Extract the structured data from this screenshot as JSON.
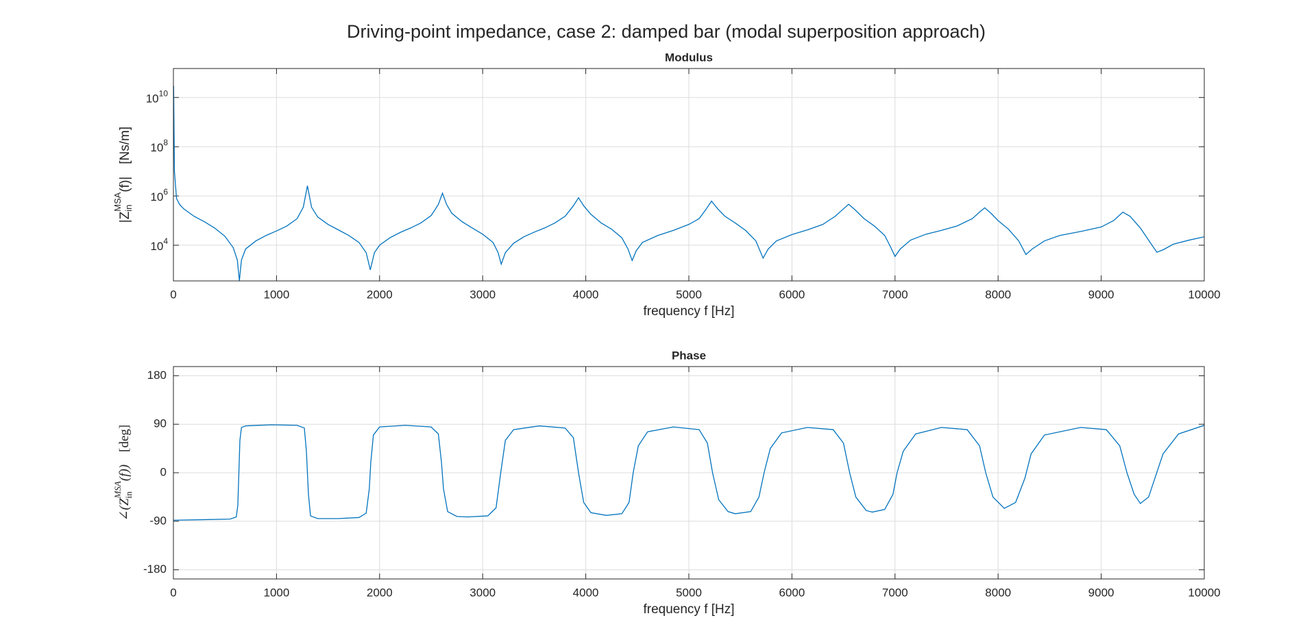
{
  "title": "Driving-point impedance, case 2: damped bar (modal superposition approach)",
  "chart_data": [
    {
      "type": "line",
      "title": "Modulus",
      "xlabel": "frequency f [Hz]",
      "ylabel": [
        "|Z",
        "in",
        "MSA",
        "(f)|",
        "[Ns/m]"
      ],
      "log_y": true,
      "grid": true,
      "color": "#0072bd",
      "xlim": [
        0,
        10000
      ],
      "xticks": [
        0,
        1000,
        2000,
        3000,
        4000,
        5000,
        6000,
        7000,
        8000,
        9000,
        10000
      ],
      "ylim": [
        355,
        150000000000
      ],
      "yticks": [
        {
          "value": 10000,
          "label": [
            "10",
            "4"
          ]
        },
        {
          "value": 1000000,
          "label": [
            "10",
            "6"
          ]
        },
        {
          "value": 100000000,
          "label": [
            "10",
            "8"
          ]
        },
        {
          "value": 10000000000,
          "label": [
            "10",
            "10"
          ]
        }
      ],
      "x": [
        2,
        10,
        30,
        60,
        100,
        200,
        300,
        400,
        500,
        580,
        620,
        640,
        660,
        700,
        800,
        900,
        1000,
        1100,
        1200,
        1260,
        1300,
        1340,
        1400,
        1500,
        1600,
        1700,
        1800,
        1870,
        1910,
        1950,
        2000,
        2100,
        2200,
        2300,
        2400,
        2500,
        2570,
        2610,
        2650,
        2700,
        2800,
        2900,
        3000,
        3100,
        3150,
        3180,
        3220,
        3300,
        3400,
        3500,
        3600,
        3700,
        3800,
        3880,
        3930,
        3980,
        4050,
        4150,
        4250,
        4350,
        4410,
        4450,
        4490,
        4550,
        4700,
        4850,
        5000,
        5100,
        5170,
        5220,
        5280,
        5350,
        5450,
        5550,
        5650,
        5720,
        5770,
        5850,
        6000,
        6150,
        6300,
        6420,
        6500,
        6550,
        6610,
        6700,
        6800,
        6900,
        6960,
        7000,
        7050,
        7150,
        7300,
        7450,
        7600,
        7750,
        7830,
        7870,
        7930,
        8000,
        8100,
        8200,
        8270,
        8330,
        8450,
        8600,
        8800,
        9000,
        9120,
        9210,
        9280,
        9380,
        9480,
        9540,
        9600,
        9700,
        9850,
        10000
      ],
      "values": [
        30000000000,
        10000000,
        800000,
        450000,
        300000,
        150000,
        90000,
        50000,
        23000,
        8000,
        2500,
        360,
        2500,
        7000,
        15000,
        25000,
        38000,
        60000,
        120000,
        350000,
        2600000,
        350000,
        140000,
        70000,
        42000,
        25000,
        13000,
        5000,
        1000,
        5000,
        10000,
        20000,
        33000,
        50000,
        80000,
        160000,
        450000,
        1300000,
        450000,
        200000,
        90000,
        50000,
        28000,
        13000,
        5000,
        1700,
        5000,
        12000,
        22000,
        34000,
        50000,
        80000,
        150000,
        400000,
        850000,
        400000,
        180000,
        80000,
        45000,
        20000,
        7000,
        2400,
        6000,
        13000,
        25000,
        40000,
        70000,
        120000,
        300000,
        620000,
        300000,
        150000,
        80000,
        40000,
        15000,
        3000,
        7000,
        15000,
        27000,
        42000,
        70000,
        150000,
        300000,
        460000,
        280000,
        120000,
        60000,
        25000,
        8000,
        3500,
        7000,
        16000,
        28000,
        40000,
        60000,
        120000,
        240000,
        330000,
        200000,
        100000,
        45000,
        15000,
        4200,
        7000,
        15000,
        25000,
        36000,
        55000,
        100000,
        220000,
        150000,
        50000,
        12000,
        5200,
        6500,
        11000,
        16000,
        22000
      ]
    },
    {
      "type": "line",
      "title": "Phase",
      "xlabel": "frequency f [Hz]",
      "ylabel": [
        "∠(Z",
        "in",
        "MSA",
        "(f))",
        "[deg]"
      ],
      "log_y": false,
      "grid": true,
      "color": "#0072bd",
      "xlim": [
        0,
        10000
      ],
      "xticks": [
        0,
        1000,
        2000,
        3000,
        4000,
        5000,
        6000,
        7000,
        8000,
        9000,
        10000
      ],
      "ylim": [
        -197,
        197
      ],
      "yticks": [
        -180,
        -90,
        0,
        90,
        180
      ],
      "x": [
        0,
        300,
        550,
        610,
        625,
        635,
        645,
        660,
        700,
        950,
        1200,
        1270,
        1290,
        1300,
        1310,
        1330,
        1400,
        1600,
        1800,
        1870,
        1900,
        1915,
        1940,
        2000,
        2250,
        2500,
        2570,
        2600,
        2620,
        2660,
        2750,
        2850,
        3050,
        3130,
        3175,
        3220,
        3300,
        3550,
        3800,
        3880,
        3930,
        3980,
        4050,
        4200,
        4350,
        4420,
        4460,
        4510,
        4600,
        4850,
        5100,
        5180,
        5230,
        5290,
        5380,
        5450,
        5600,
        5680,
        5730,
        5790,
        5900,
        6150,
        6400,
        6500,
        6560,
        6620,
        6720,
        6780,
        6900,
        6980,
        7020,
        7080,
        7200,
        7450,
        7700,
        7820,
        7880,
        7950,
        8060,
        8170,
        8260,
        8320,
        8450,
        8800,
        9050,
        9180,
        9250,
        9320,
        9380,
        9460,
        9530,
        9600,
        9750,
        10000
      ],
      "values": [
        -88,
        -87,
        -86,
        -82,
        -60,
        0,
        60,
        84,
        87,
        89,
        88,
        83,
        40,
        0,
        -40,
        -80,
        -85,
        -85,
        -83,
        -75,
        -30,
        20,
        70,
        85,
        88,
        85,
        72,
        20,
        -30,
        -72,
        -81,
        -82,
        -80,
        -65,
        0,
        60,
        80,
        87,
        83,
        65,
        0,
        -55,
        -74,
        -79,
        -76,
        -55,
        0,
        50,
        76,
        85,
        80,
        55,
        0,
        -50,
        -72,
        -76,
        -72,
        -45,
        0,
        45,
        74,
        84,
        80,
        55,
        0,
        -45,
        -70,
        -73,
        -68,
        -40,
        0,
        40,
        72,
        84,
        80,
        50,
        0,
        -45,
        -66,
        -55,
        -10,
        35,
        70,
        84,
        80,
        50,
        0,
        -40,
        -57,
        -45,
        -5,
        35,
        72,
        88
      ]
    }
  ]
}
